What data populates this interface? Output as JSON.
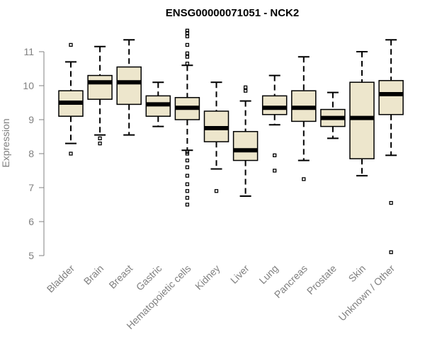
{
  "chart_data": {
    "type": "boxplot",
    "title": "ENSG00000071051 - NCK2",
    "xlabel": "",
    "ylabel": "Expression",
    "ylim": [
      5,
      11.7
    ],
    "yticks": [
      5,
      6,
      7,
      8,
      9,
      10,
      11
    ],
    "grid": false,
    "legend": "none",
    "box_color": "#ede6cc",
    "categories": [
      "Bladder",
      "Brain",
      "Breast",
      "Gastric",
      "Hematopoietic cells",
      "Kidney",
      "Liver",
      "Lung",
      "Pancreas",
      "Prostate",
      "Skin",
      "Unknown / Other"
    ],
    "boxes": [
      {
        "category": "Bladder",
        "whisker_low": 8.3,
        "q1": 9.1,
        "median": 9.5,
        "q3": 9.85,
        "whisker_high": 10.7,
        "outliers": [
          8.0,
          11.2
        ]
      },
      {
        "category": "Brain",
        "whisker_low": 8.55,
        "q1": 9.6,
        "median": 10.1,
        "q3": 10.3,
        "whisker_high": 11.15,
        "outliers": [
          8.3,
          8.45
        ]
      },
      {
        "category": "Breast",
        "whisker_low": 8.55,
        "q1": 9.45,
        "median": 10.1,
        "q3": 10.55,
        "whisker_high": 11.35,
        "outliers": []
      },
      {
        "category": "Gastric",
        "whisker_low": 8.8,
        "q1": 9.1,
        "median": 9.45,
        "q3": 9.7,
        "whisker_high": 10.1,
        "outliers": []
      },
      {
        "category": "Hematopoietic cells",
        "whisker_low": 8.1,
        "q1": 9.0,
        "median": 9.35,
        "q3": 9.65,
        "whisker_high": 10.6,
        "outliers": [
          6.5,
          6.7,
          6.9,
          7.1,
          7.35,
          7.6,
          7.8,
          8.0,
          8.05,
          10.65,
          10.85,
          10.95,
          11.2,
          11.45,
          11.55,
          11.62
        ]
      },
      {
        "category": "Kidney",
        "whisker_low": 7.55,
        "q1": 8.35,
        "median": 8.75,
        "q3": 9.25,
        "whisker_high": 10.1,
        "outliers": [
          6.9
        ]
      },
      {
        "category": "Liver",
        "whisker_low": 6.75,
        "q1": 7.8,
        "median": 8.1,
        "q3": 8.65,
        "whisker_high": 9.55,
        "outliers": [
          9.85,
          9.95
        ]
      },
      {
        "category": "Lung",
        "whisker_low": 8.85,
        "q1": 9.15,
        "median": 9.35,
        "q3": 9.7,
        "whisker_high": 10.3,
        "outliers": [
          7.5,
          7.95
        ]
      },
      {
        "category": "Pancreas",
        "whisker_low": 7.8,
        "q1": 8.95,
        "median": 9.35,
        "q3": 9.85,
        "whisker_high": 10.85,
        "outliers": [
          7.25
        ]
      },
      {
        "category": "Prostate",
        "whisker_low": 8.45,
        "q1": 8.8,
        "median": 9.05,
        "q3": 9.3,
        "whisker_high": 9.8,
        "outliers": []
      },
      {
        "category": "Skin",
        "whisker_low": 7.35,
        "q1": 7.85,
        "median": 9.05,
        "q3": 10.1,
        "whisker_high": 11.0,
        "outliers": []
      },
      {
        "category": "Unknown / Other",
        "whisker_low": 7.95,
        "q1": 9.15,
        "median": 9.75,
        "q3": 10.15,
        "whisker_high": 11.35,
        "outliers": [
          5.1,
          6.55
        ]
      }
    ]
  }
}
